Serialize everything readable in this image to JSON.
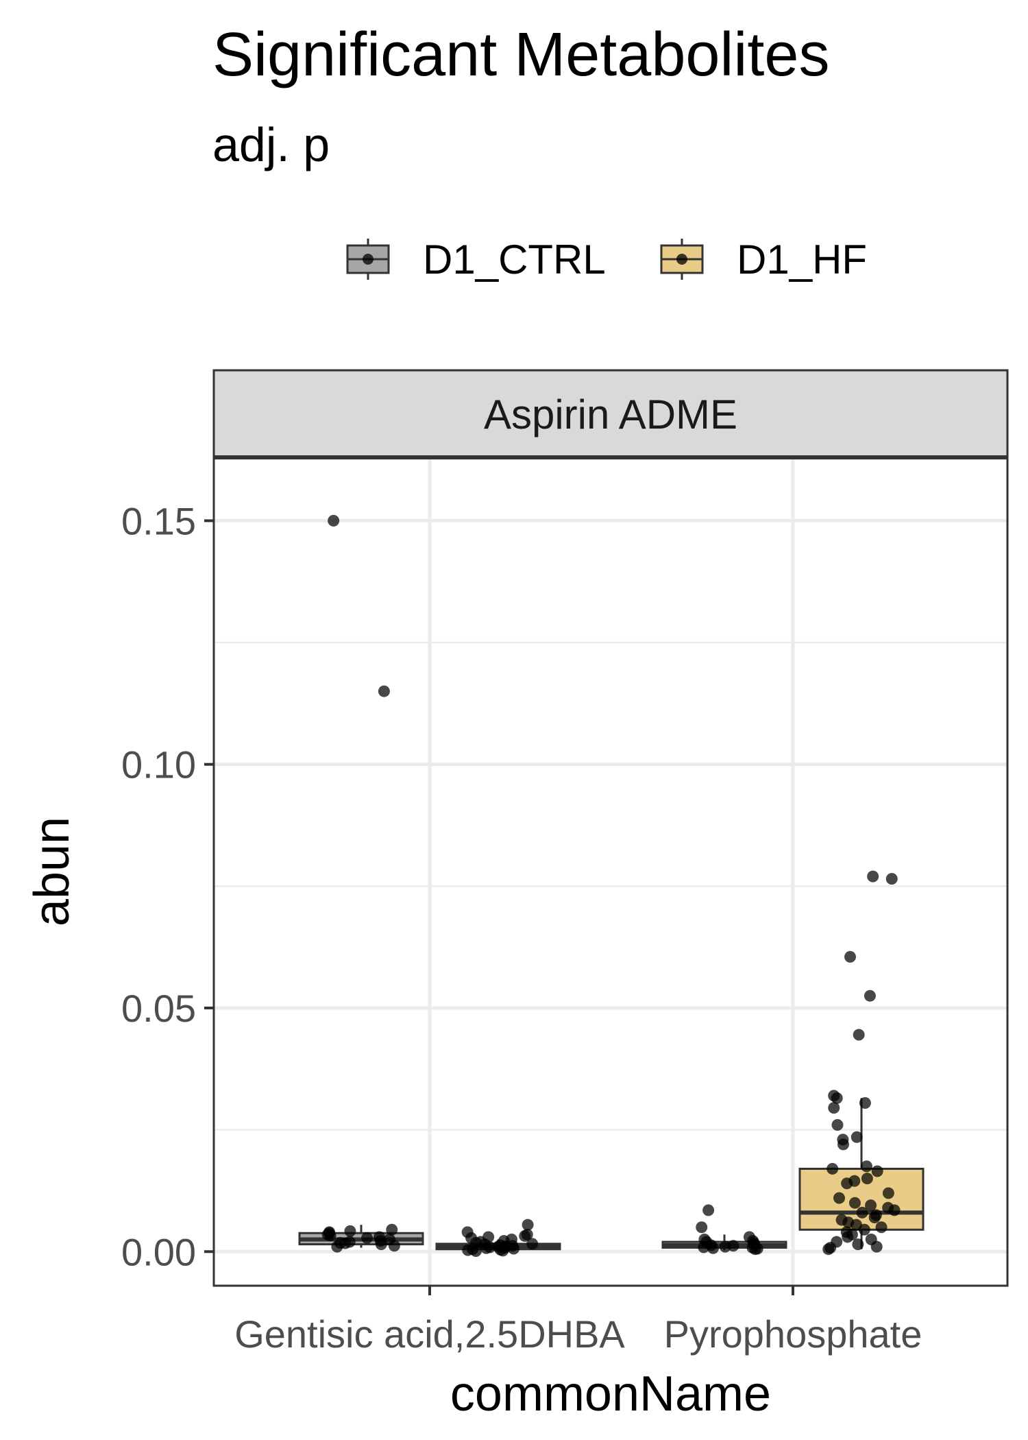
{
  "chart_data": {
    "type": "boxplot",
    "title": "Significant Metabolites",
    "subtitle": "adj. p",
    "facet": "Aspirin ADME",
    "xlabel": "commonName",
    "ylabel": "abun",
    "ylim": [
      -0.007,
      0.163
    ],
    "yticks": [
      {
        "value": 0.0,
        "label": "0.00"
      },
      {
        "value": 0.05,
        "label": "0.05"
      },
      {
        "value": 0.1,
        "label": "0.10"
      },
      {
        "value": 0.15,
        "label": "0.15"
      }
    ],
    "categories": [
      "Gentisic acid,2.5DHBA",
      "Pyrophosphate"
    ],
    "grid": true,
    "legend_position": "top",
    "series": [
      {
        "name": "D1_CTRL",
        "color": "#a6a6a6",
        "boxes": [
          {
            "category": "Gentisic acid,2.5DHBA",
            "q1": 0.0015,
            "median": 0.0025,
            "q3": 0.0038,
            "whisker_low": 0.0008,
            "whisker_high": 0.0055,
            "points": [
              0.15,
              0.115,
              0.0045,
              0.004,
              0.0035,
              0.0033,
              0.003,
              0.0028,
              0.0025,
              0.0022,
              0.002,
              0.0018,
              0.0017,
              0.0015,
              0.0012,
              0.001,
              0.0042,
              0.0038
            ]
          },
          {
            "category": "Pyrophosphate",
            "q1": 0.0008,
            "median": 0.0013,
            "q3": 0.002,
            "whisker_low": 0.0003,
            "whisker_high": 0.0035,
            "points": [
              0.0085,
              0.005,
              0.003,
              0.0025,
              0.0022,
              0.002,
              0.0018,
              0.0015,
              0.0013,
              0.0012,
              0.001,
              0.0009,
              0.0008,
              0.0007,
              0.0006,
              0.0005
            ]
          }
        ]
      },
      {
        "name": "D1_HF",
        "color": "#e8cc88",
        "boxes": [
          {
            "category": "Gentisic acid,2.5DHBA",
            "q1": 0.0005,
            "median": 0.001,
            "q3": 0.0016,
            "whisker_low": 0.0001,
            "whisker_high": 0.0025,
            "points": [
              0.0055,
              0.004,
              0.0035,
              0.0032,
              0.003,
              0.0028,
              0.0025,
              0.0022,
              0.002,
              0.0018,
              0.0016,
              0.0015,
              0.0013,
              0.0012,
              0.0011,
              0.001,
              0.0009,
              0.0008,
              0.0007,
              0.0006,
              0.0005,
              0.0004,
              0.0003,
              0.0002,
              0.0001
            ]
          },
          {
            "category": "Pyrophosphate",
            "q1": 0.0045,
            "median": 0.008,
            "q3": 0.017,
            "whisker_low": 0.0005,
            "whisker_high": 0.0315,
            "points": [
              0.077,
              0.0765,
              0.0605,
              0.0525,
              0.0445,
              0.032,
              0.0315,
              0.0305,
              0.0295,
              0.026,
              0.0235,
              0.023,
              0.022,
              0.0175,
              0.017,
              0.0165,
              0.015,
              0.0145,
              0.014,
              0.012,
              0.011,
              0.01,
              0.0095,
              0.009,
              0.0085,
              0.008,
              0.0075,
              0.007,
              0.0065,
              0.006,
              0.0055,
              0.005,
              0.0045,
              0.004,
              0.0035,
              0.003,
              0.0025,
              0.002,
              0.0015,
              0.001,
              0.0008,
              0.0005
            ]
          }
        ]
      }
    ]
  }
}
